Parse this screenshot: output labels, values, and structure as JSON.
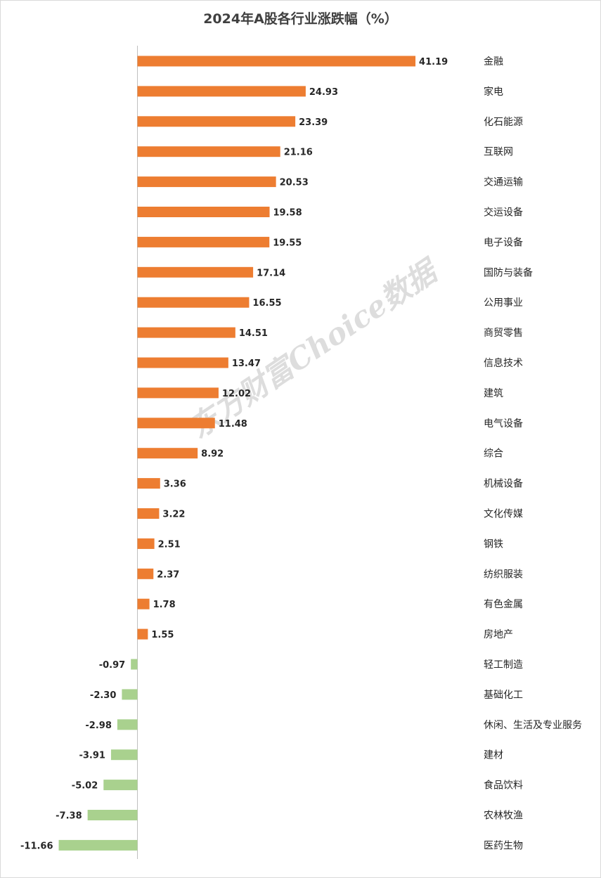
{
  "chart_data": {
    "type": "bar",
    "orientation": "horizontal",
    "title": "2024年A股各行业涨跌幅（%）",
    "categories": [
      "金融",
      "家电",
      "化石能源",
      "互联网",
      "交通运输",
      "交运设备",
      "电子设备",
      "国防与装备",
      "公用事业",
      "商贸零售",
      "信息技术",
      "建筑",
      "电气设备",
      "综合",
      "机械设备",
      "文化传媒",
      "钢铁",
      "纺织服装",
      "有色金属",
      "房地产",
      "轻工制造",
      "基础化工",
      "休闲、生活及专业服务",
      "建材",
      "食品饮料",
      "农林牧渔",
      "医药生物"
    ],
    "values": [
      41.19,
      24.93,
      23.39,
      21.16,
      20.53,
      19.58,
      19.55,
      17.14,
      16.55,
      14.51,
      13.47,
      12.02,
      11.48,
      8.92,
      3.36,
      3.22,
      2.51,
      2.37,
      1.78,
      1.55,
      -0.97,
      -2.3,
      -2.98,
      -3.91,
      -5.02,
      -7.38,
      -11.66
    ],
    "value_labels": [
      "41.19",
      "24.93",
      "23.39",
      "21.16",
      "20.53",
      "19.58",
      "19.55",
      "17.14",
      "16.55",
      "14.51",
      "13.47",
      "12.02",
      "11.48",
      "8.92",
      "3.36",
      "3.22",
      "2.51",
      "2.37",
      "1.78",
      "1.55",
      "-0.97",
      "-2.30",
      "-2.98",
      "-3.91",
      "-5.02",
      "-7.38",
      "-11.66"
    ],
    "colors": {
      "positive": "#ED7D31",
      "negative": "#A9D18E",
      "axis": "#bfbfbf"
    },
    "grid": false,
    "legend": false
  },
  "watermark": "东方财富Choice数据"
}
